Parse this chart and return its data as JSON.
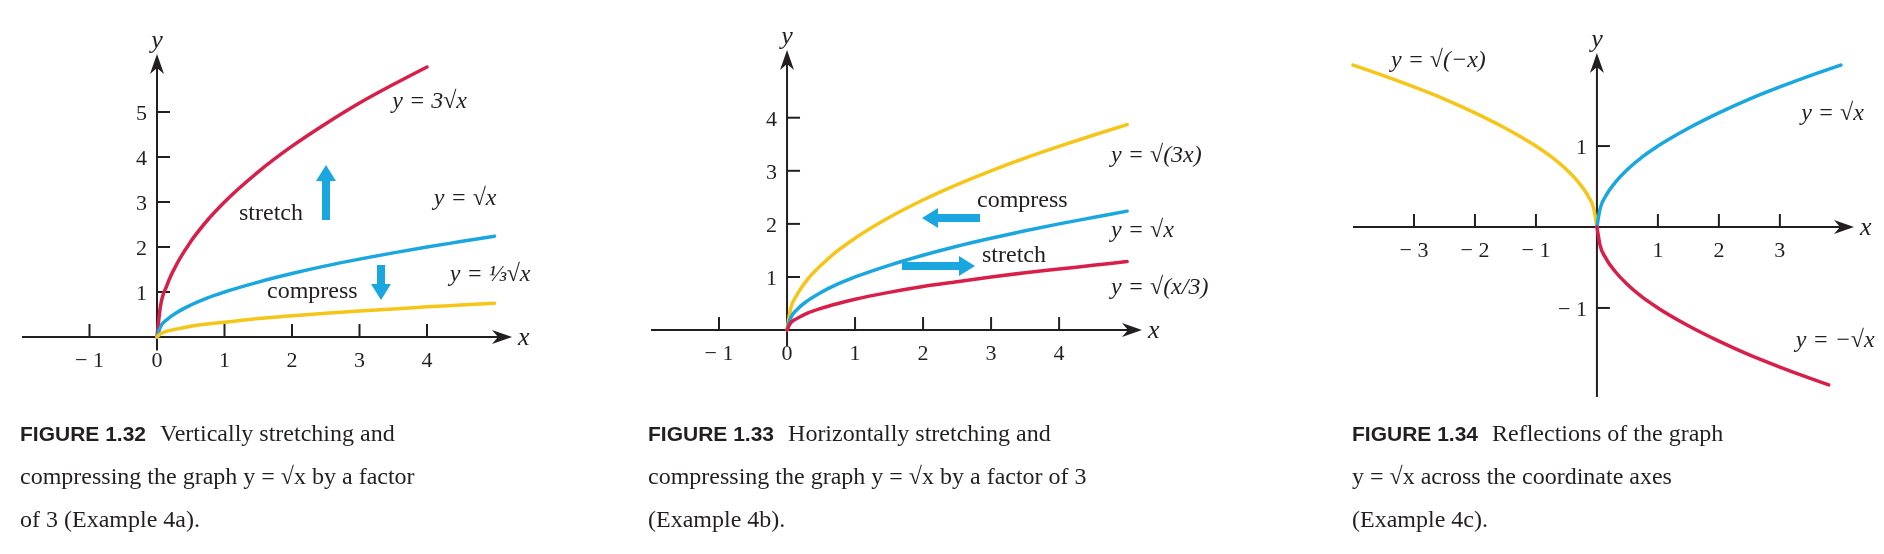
{
  "chart_data": [
    {
      "type": "line",
      "title": "FIGURE 1.32",
      "subtitle": "Vertically stretching and compressing the graph y = √x by a factor of 3 (Example 4a).",
      "xlabel": "x",
      "ylabel": "y",
      "xlim": [
        -2,
        5.2
      ],
      "ylim": [
        -0.3,
        6.2
      ],
      "xticks": [
        {
          "value": -1,
          "label": "− 1"
        },
        0,
        1,
        2,
        3,
        4
      ],
      "yticks": [
        1,
        2,
        3,
        4,
        5
      ],
      "annotations": [
        "stretch",
        "compress"
      ],
      "series": [
        {
          "name": "y = 3√x",
          "color": "#d81f4a",
          "x": [
            0,
            0.05,
            0.15,
            0.3,
            0.5,
            0.75,
            1,
            1.5,
            2,
            2.5,
            3,
            3.5,
            4
          ],
          "values": [
            0,
            0.67,
            1.16,
            1.64,
            2.12,
            2.6,
            3,
            3.67,
            4.24,
            4.74,
            5.2,
            5.61,
            6
          ]
        },
        {
          "name": "y = √x",
          "color": "#1aa7e0",
          "x": [
            0,
            0.05,
            0.15,
            0.3,
            0.5,
            0.75,
            1,
            1.5,
            2,
            2.5,
            3,
            3.5,
            4,
            4.5,
            5
          ],
          "values": [
            0,
            0.22,
            0.39,
            0.55,
            0.71,
            0.87,
            1,
            1.22,
            1.41,
            1.58,
            1.73,
            1.87,
            2,
            2.12,
            2.24
          ]
        },
        {
          "name": "y = ⅓√x",
          "color": "#f5c518",
          "x": [
            0,
            0.05,
            0.15,
            0.3,
            0.5,
            0.75,
            1,
            1.5,
            2,
            2.5,
            3,
            3.5,
            4,
            4.5,
            5
          ],
          "values": [
            0,
            0.07,
            0.13,
            0.18,
            0.24,
            0.29,
            0.33,
            0.41,
            0.47,
            0.53,
            0.58,
            0.62,
            0.67,
            0.71,
            0.75
          ]
        }
      ]
    },
    {
      "type": "line",
      "title": "FIGURE 1.33",
      "subtitle": "Horizontally stretching and compressing the graph y = √x by a factor of 3 (Example 4b).",
      "xlabel": "x",
      "ylabel": "y",
      "xlim": [
        -2,
        5.16
      ],
      "ylim": [
        -0.3,
        5.2
      ],
      "xticks": [
        {
          "value": -1,
          "label": "− 1"
        },
        0,
        1,
        2,
        3,
        4
      ],
      "yticks": [
        1,
        2,
        3,
        4
      ],
      "annotations": [
        "compress",
        "stretch"
      ],
      "series": [
        {
          "name": "y = √(3x)",
          "color": "#f5c518",
          "x": [
            0,
            0.05,
            0.15,
            0.3,
            0.5,
            0.75,
            1,
            1.5,
            2,
            2.5,
            3,
            3.5,
            4,
            4.5,
            5
          ],
          "values": [
            0,
            0.39,
            0.67,
            0.95,
            1.22,
            1.5,
            1.73,
            2.12,
            2.45,
            2.74,
            3,
            3.24,
            3.46,
            3.67,
            3.87
          ]
        },
        {
          "name": "y = √x",
          "color": "#1aa7e0",
          "x": [
            0,
            0.05,
            0.15,
            0.3,
            0.5,
            0.75,
            1,
            1.5,
            2,
            2.5,
            3,
            3.5,
            4,
            4.5,
            5
          ],
          "values": [
            0,
            0.22,
            0.39,
            0.55,
            0.71,
            0.87,
            1,
            1.22,
            1.41,
            1.58,
            1.73,
            1.87,
            2,
            2.12,
            2.24
          ]
        },
        {
          "name": "y = √(x/3)",
          "color": "#d81f4a",
          "x": [
            0,
            0.05,
            0.15,
            0.3,
            0.5,
            0.75,
            1,
            1.5,
            2,
            2.5,
            3,
            3.5,
            4,
            4.5,
            5
          ],
          "values": [
            0,
            0.13,
            0.22,
            0.32,
            0.41,
            0.5,
            0.58,
            0.71,
            0.82,
            0.91,
            1,
            1.08,
            1.15,
            1.22,
            1.29
          ]
        }
      ]
    },
    {
      "type": "line",
      "title": "FIGURE 1.34",
      "subtitle": "Reflections of the graph y = √x across the coordinate axes (Example 4c).",
      "xlabel": "x",
      "ylabel": "y",
      "xlim": [
        -4,
        4.15
      ],
      "ylim": [
        -2.1,
        2.1
      ],
      "xticks": [
        {
          "value": -3,
          "label": "− 3"
        },
        {
          "value": -2,
          "label": "− 2"
        },
        {
          "value": -1,
          "label": "− 1"
        },
        1,
        2,
        3
      ],
      "yticks": [
        {
          "value": -1,
          "label": "− 1"
        },
        1
      ],
      "series": [
        {
          "name": "y = √(−x)",
          "color": "#f5c518",
          "x": [
            -4,
            -3.5,
            -3,
            -2.5,
            -2,
            -1.5,
            -1,
            -0.75,
            -0.5,
            -0.3,
            -0.15,
            -0.05,
            0
          ],
          "values": [
            2,
            1.87,
            1.73,
            1.58,
            1.41,
            1.22,
            1,
            0.87,
            0.71,
            0.55,
            0.39,
            0.22,
            0
          ]
        },
        {
          "name": "y = √x",
          "color": "#1aa7e0",
          "x": [
            0,
            0.05,
            0.15,
            0.3,
            0.5,
            0.75,
            1,
            1.5,
            2,
            2.5,
            3,
            3.5,
            4
          ],
          "values": [
            0,
            0.22,
            0.39,
            0.55,
            0.71,
            0.87,
            1,
            1.22,
            1.41,
            1.58,
            1.73,
            1.87,
            2
          ]
        },
        {
          "name": "y = −√x",
          "color": "#d81f4a",
          "x": [
            0,
            0.05,
            0.15,
            0.3,
            0.5,
            0.75,
            1,
            1.5,
            2,
            2.5,
            3,
            3.5,
            3.8
          ],
          "values": [
            0,
            -0.22,
            -0.39,
            -0.55,
            -0.71,
            -0.87,
            -1,
            -1.22,
            -1.41,
            -1.58,
            -1.73,
            -1.87,
            -1.95
          ]
        }
      ]
    }
  ]
}
